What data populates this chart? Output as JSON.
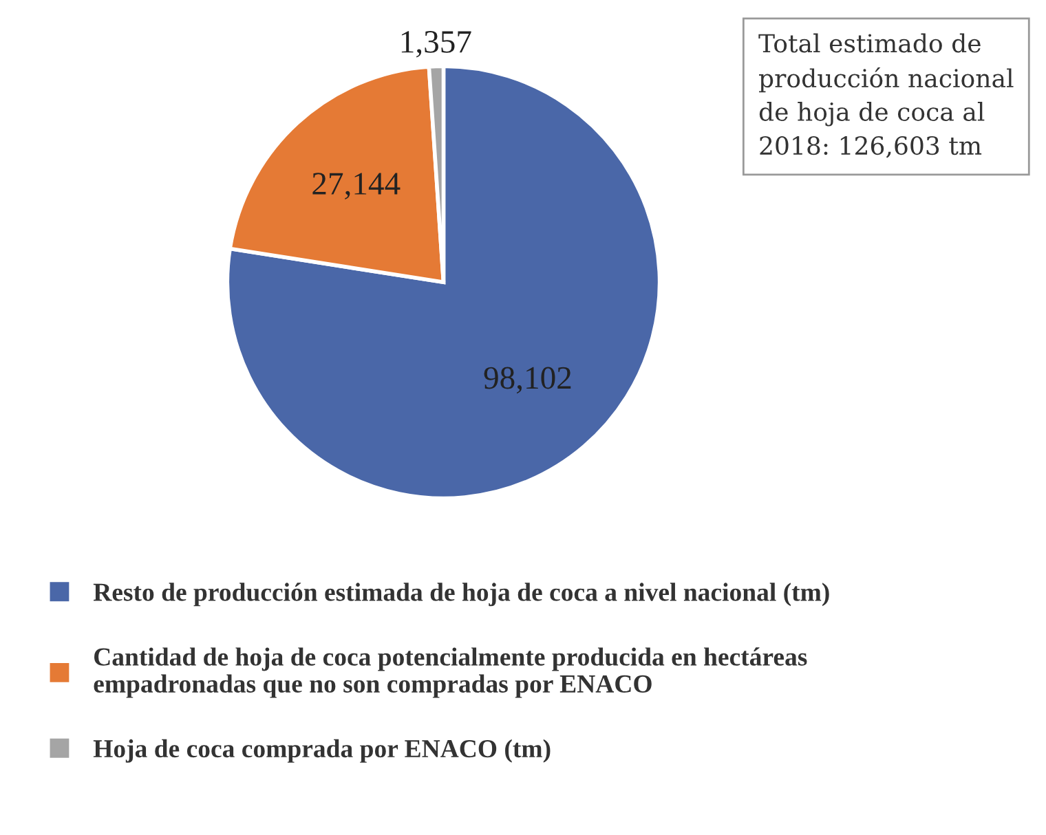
{
  "chart_data": {
    "type": "pie",
    "categories": [
      "Resto de producción estimada de hoja de coca a nivel nacional (tm)",
      "Cantidad de hoja de coca potencialmente producida en hectáreas empadronadas que no son compradas por ENACO",
      "Hoja de coca comprada por ENACO (tm)"
    ],
    "values": [
      98102,
      27144,
      1357
    ],
    "colors": [
      "#4a67a8",
      "#e57a35",
      "#a5a5a5"
    ],
    "value_labels": [
      "98,102",
      "27,144",
      "1,357"
    ],
    "annotations": [
      "Total estimado de producción nacional de hoja de coca al 2018: 126,603 tm"
    ],
    "legend": "bottom"
  }
}
